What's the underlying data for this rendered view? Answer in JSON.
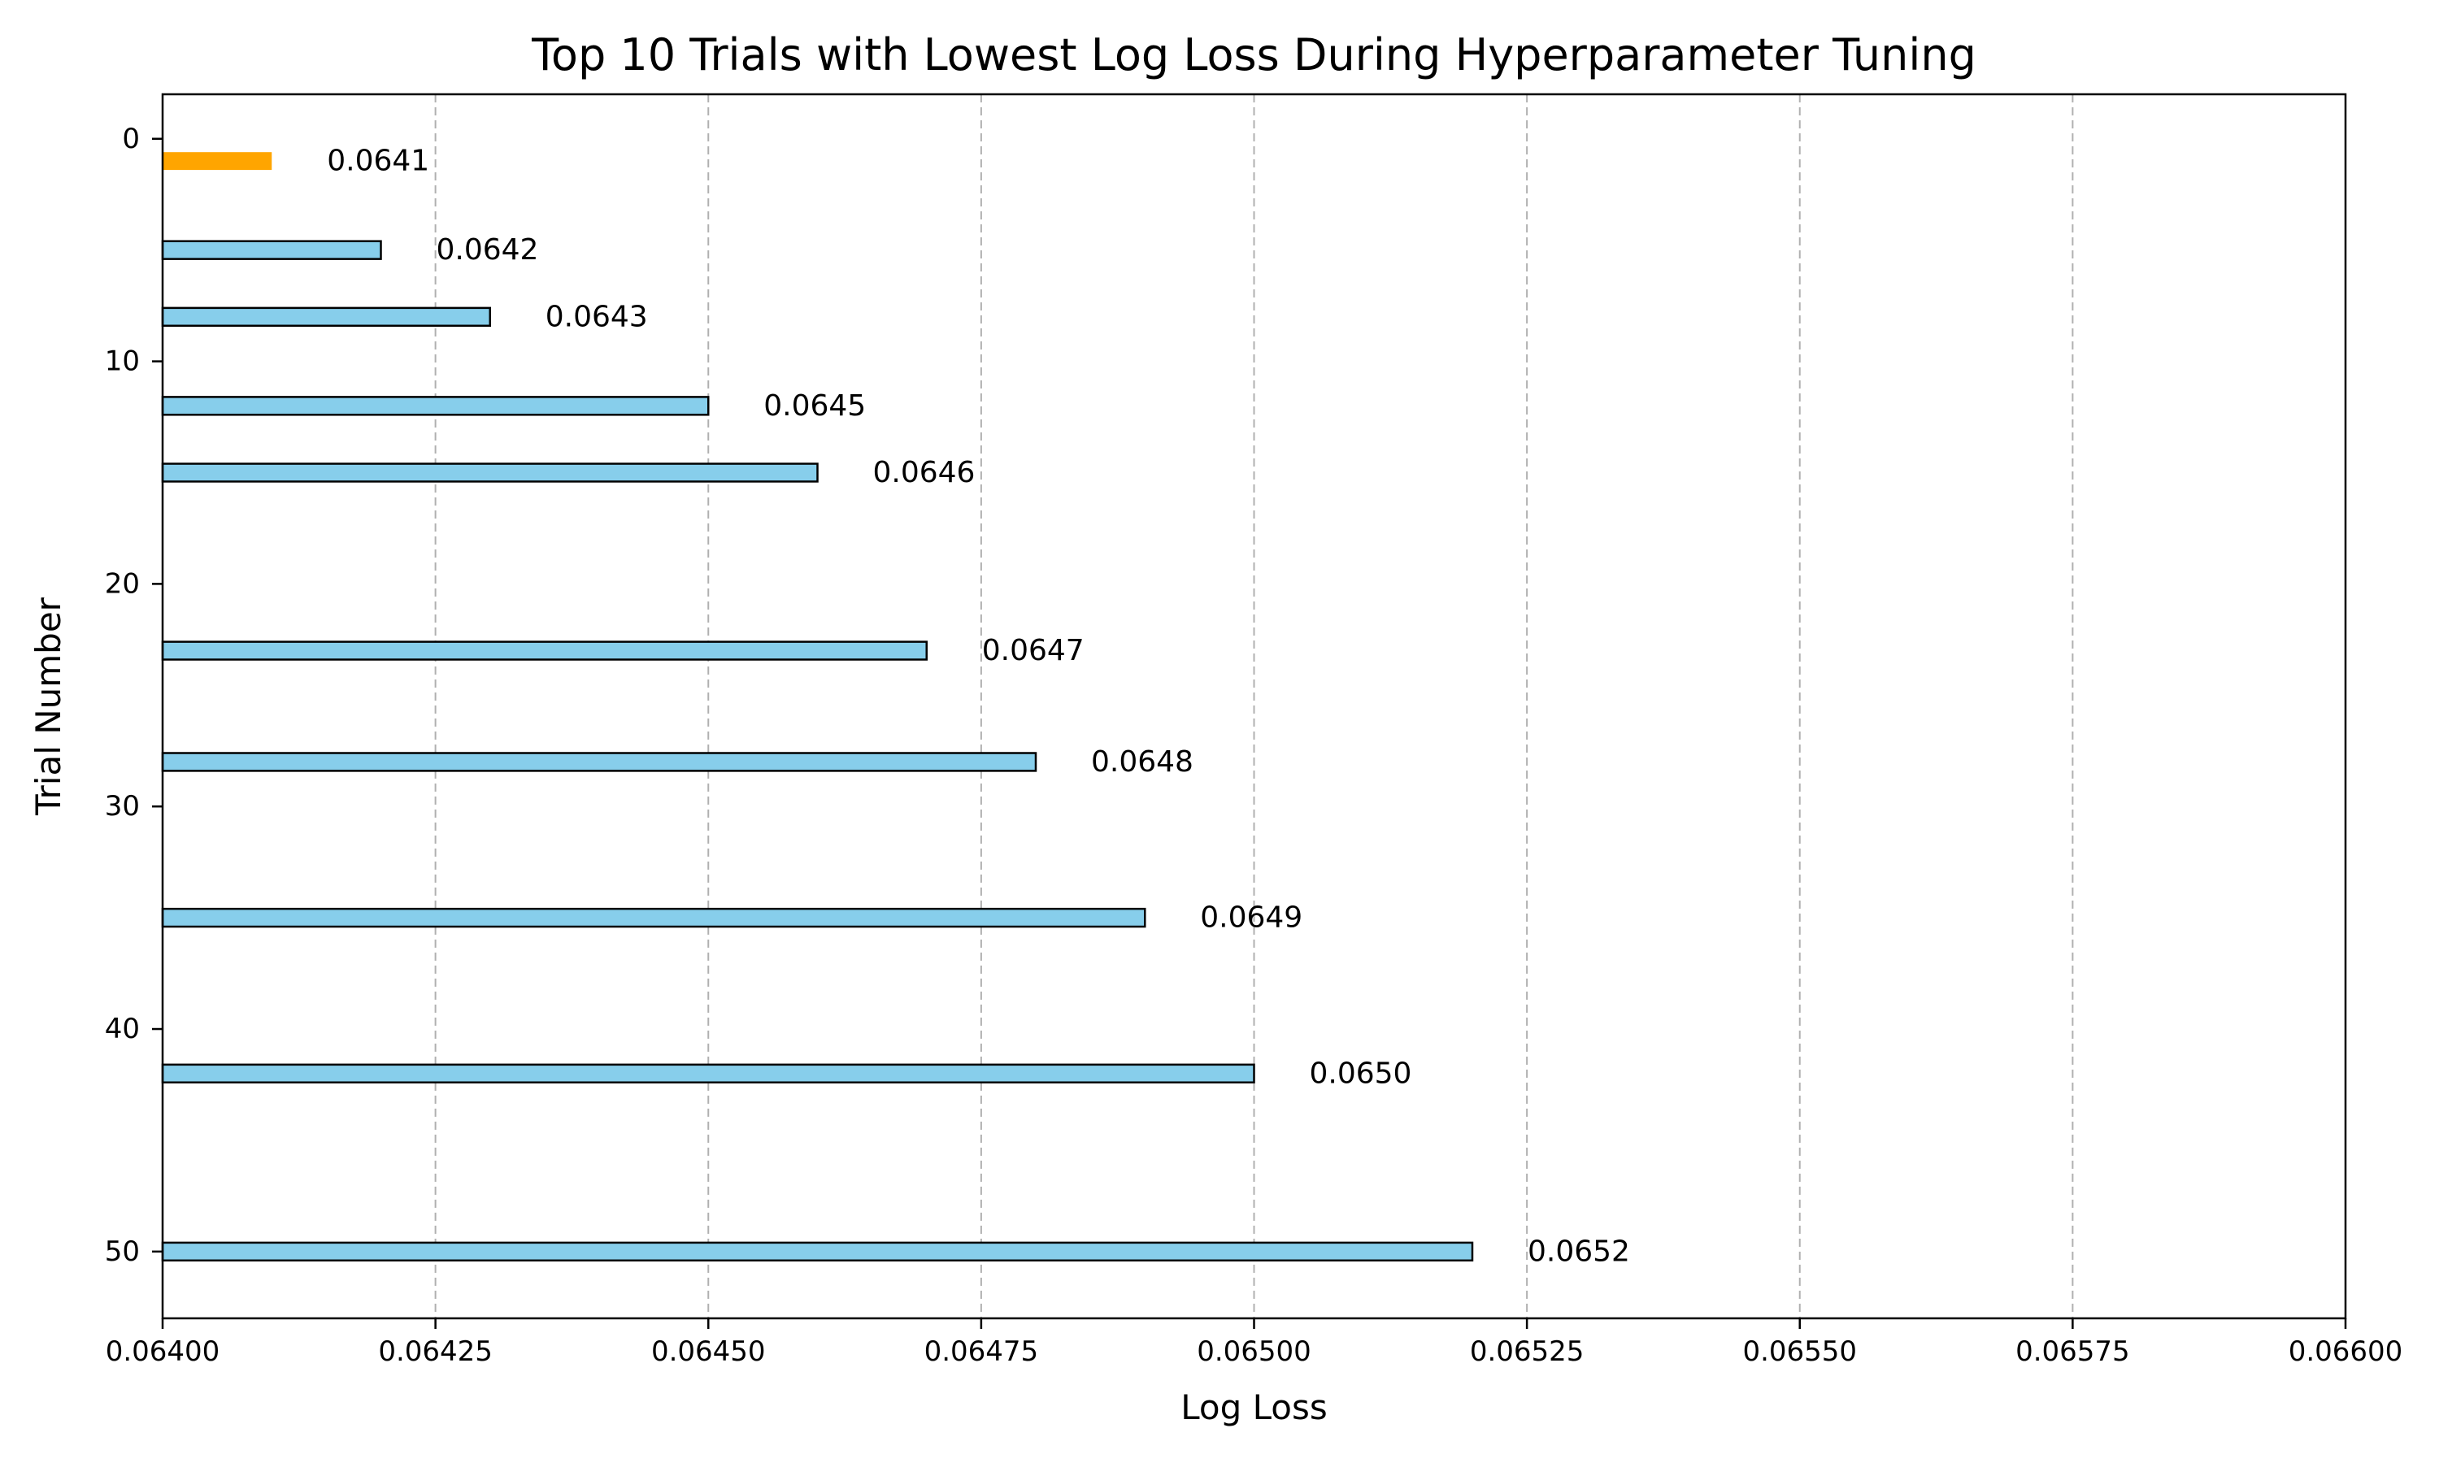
{
  "chart_data": {
    "type": "bar",
    "orientation": "horizontal",
    "title": "Top 10 Trials with Lowest Log Loss During Hyperparameter Tuning",
    "xlabel": "Log Loss",
    "ylabel": "Trial Number",
    "xlim": [
      0.064,
      0.066
    ],
    "ylim": [
      53,
      -2
    ],
    "y_inverted": true,
    "grid": {
      "x": true,
      "y": false,
      "style": "dashed"
    },
    "x_ticks": [
      0.064,
      0.06425,
      0.0645,
      0.06475,
      0.065,
      0.06525,
      0.0655,
      0.06575,
      0.066
    ],
    "x_tick_labels": [
      "0.06400",
      "0.06425",
      "0.06450",
      "0.06475",
      "0.06500",
      "0.06525",
      "0.06550",
      "0.06575",
      "0.06600"
    ],
    "y_ticks": [
      0,
      10,
      20,
      30,
      40,
      50
    ],
    "y_tick_labels": [
      "0",
      "10",
      "20",
      "30",
      "40",
      "50"
    ],
    "bars": [
      {
        "trial": 1,
        "value": 0.0641,
        "label": "0.0641",
        "highlight": true
      },
      {
        "trial": 5,
        "value": 0.0642,
        "label": "0.0642",
        "highlight": false
      },
      {
        "trial": 8,
        "value": 0.0643,
        "label": "0.0643",
        "highlight": false
      },
      {
        "trial": 12,
        "value": 0.0645,
        "label": "0.0645",
        "highlight": false
      },
      {
        "trial": 15,
        "value": 0.0646,
        "label": "0.0646",
        "highlight": false
      },
      {
        "trial": 23,
        "value": 0.0647,
        "label": "0.0647",
        "highlight": false
      },
      {
        "trial": 28,
        "value": 0.0648,
        "label": "0.0648",
        "highlight": false
      },
      {
        "trial": 35,
        "value": 0.0649,
        "label": "0.0649",
        "highlight": false
      },
      {
        "trial": 42,
        "value": 0.065,
        "label": "0.0650",
        "highlight": false
      },
      {
        "trial": 50,
        "value": 0.0652,
        "label": "0.0652",
        "highlight": false
      }
    ],
    "bar_thickness": 0.8,
    "colors": {
      "bar": "#87ceeb",
      "highlight": "#ffa500",
      "edge": "#000000",
      "grid": "#b0b0b0"
    }
  }
}
